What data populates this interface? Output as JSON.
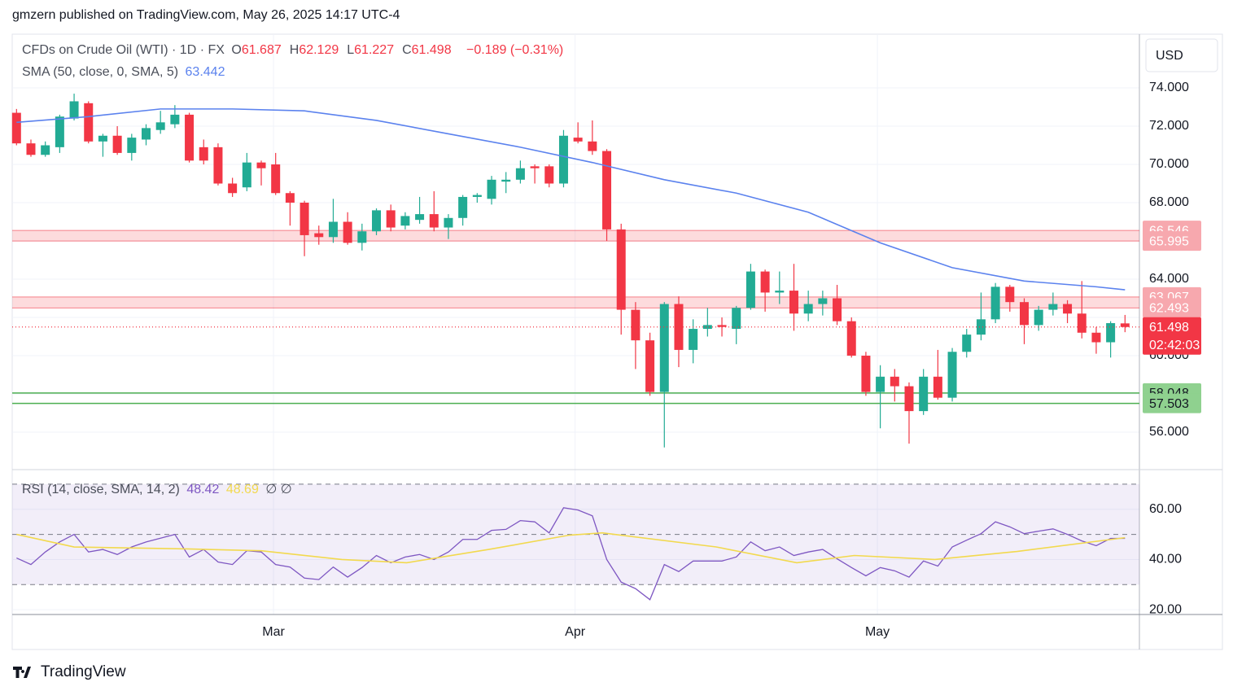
{
  "header": "gmzern published on TradingView.com, May 26, 2025 14:17 UTC-4",
  "footer": "TradingView",
  "chart_data": {
    "type": "candlestick",
    "title": "CFDs on Crude Oil (WTI) · 1D · FX",
    "ohlc_labels": [
      "O",
      "H",
      "L",
      "C"
    ],
    "change": "−0.189 (−0.31%)",
    "currency": "USD",
    "countdown": "02:42:03",
    "up_color": "#22ab94",
    "down_color": "#f23645",
    "grid": true,
    "xlim": [
      -0.3,
      78
    ],
    "xticks": [
      {
        "value": 17.85,
        "label": "Mar"
      },
      {
        "value": 38.8,
        "label": "Apr"
      },
      {
        "value": 59.8,
        "label": "May"
      }
    ],
    "ylim": [
      54.04,
      76.81
    ],
    "yticks": [
      {
        "value": 56,
        "label": "56.000"
      },
      {
        "value": 58,
        "label": "58.000"
      },
      {
        "value": 60,
        "label": "60.000"
      },
      {
        "value": 62,
        "label": "62.000"
      },
      {
        "value": 64,
        "label": "64.000"
      },
      {
        "value": 66,
        "label": "66.000"
      },
      {
        "value": 68,
        "label": "68.000"
      },
      {
        "value": 70,
        "label": "70.000"
      },
      {
        "value": 72,
        "label": "72.000"
      },
      {
        "value": 74,
        "label": "74.000"
      }
    ],
    "open": [
      72.7,
      71.1,
      70.5,
      70.9,
      72.4,
      73.2,
      71.2,
      71.5,
      70.6,
      71.3,
      71.8,
      72.1,
      72.6,
      70.9,
      70.9,
      69.0,
      68.8,
      70.1,
      70.0,
      68.5,
      68.0,
      66.4,
      66.2,
      67.0,
      65.9,
      66.5,
      67.6,
      66.8,
      67.1,
      67.4,
      66.7,
      67.2,
      68.3,
      68.2,
      69.1,
      69.2,
      69.9,
      69.9,
      69.0,
      71.4,
      71.2,
      70.7,
      66.6,
      62.4,
      60.8,
      58.1,
      62.7,
      60.3,
      61.4,
      61.6,
      61.4,
      62.5,
      64.4,
      63.3,
      63.4,
      62.2,
      62.7,
      63.0,
      61.8,
      60.0,
      58.1,
      58.9,
      58.4,
      57.1,
      58.9,
      57.8,
      60.2,
      61.1,
      61.9,
      63.6,
      62.8,
      61.6,
      62.4,
      62.7,
      62.2,
      61.2,
      60.7,
      61.687
    ],
    "high": [
      72.9,
      71.3,
      71.2,
      72.6,
      73.7,
      73.3,
      71.6,
      72.0,
      71.6,
      72.1,
      72.8,
      73.1,
      72.7,
      71.3,
      71.1,
      69.3,
      70.6,
      70.2,
      70.6,
      68.6,
      68.1,
      66.8,
      68.2,
      67.5,
      66.9,
      67.7,
      67.9,
      67.5,
      68.3,
      68.6,
      67.4,
      68.4,
      68.5,
      69.4,
      69.6,
      70.2,
      70.0,
      70.0,
      71.8,
      72.2,
      72.3,
      70.8,
      66.9,
      62.8,
      61.2,
      62.8,
      63.1,
      61.9,
      62.5,
      62.0,
      62.6,
      64.8,
      64.5,
      64.4,
      64.8,
      63.4,
      63.4,
      63.7,
      62.0,
      60.2,
      59.5,
      59.3,
      58.6,
      59.3,
      60.3,
      60.4,
      61.4,
      63.3,
      63.8,
      63.7,
      63.0,
      62.6,
      63.3,
      62.9,
      63.9,
      61.5,
      61.8,
      62.129
    ],
    "low": [
      71.0,
      70.4,
      70.4,
      70.6,
      72.3,
      71.1,
      70.4,
      70.5,
      70.2,
      71.0,
      71.6,
      71.9,
      70.1,
      70.0,
      68.9,
      68.3,
      68.6,
      68.9,
      68.4,
      66.8,
      65.2,
      65.8,
      65.9,
      65.8,
      65.5,
      66.3,
      66.5,
      66.6,
      66.9,
      66.5,
      66.1,
      66.8,
      68.0,
      67.9,
      68.5,
      69.0,
      69.0,
      68.8,
      68.8,
      71.1,
      70.5,
      66.0,
      61.1,
      59.3,
      57.9,
      55.2,
      59.4,
      59.6,
      61.0,
      61.0,
      60.6,
      62.4,
      62.3,
      62.7,
      61.3,
      61.8,
      62.1,
      61.6,
      59.9,
      57.9,
      56.2,
      57.6,
      55.4,
      56.9,
      57.7,
      57.6,
      59.9,
      60.8,
      61.7,
      62.3,
      60.6,
      61.3,
      62.1,
      61.7,
      60.9,
      60.1,
      59.9,
      61.227
    ],
    "close": [
      71.1,
      70.5,
      71.0,
      72.5,
      73.3,
      71.2,
      71.5,
      70.6,
      71.4,
      71.9,
      72.2,
      72.6,
      70.2,
      70.2,
      69.0,
      68.5,
      70.1,
      69.8,
      68.5,
      68.0,
      66.3,
      66.2,
      67.0,
      65.9,
      66.5,
      67.6,
      66.7,
      67.3,
      67.4,
      66.7,
      67.2,
      68.3,
      68.4,
      69.2,
      69.2,
      69.8,
      69.8,
      69.0,
      71.5,
      71.2,
      70.7,
      66.6,
      62.4,
      60.8,
      58.1,
      62.7,
      60.3,
      61.4,
      61.6,
      61.5,
      62.5,
      64.4,
      63.3,
      63.4,
      62.2,
      62.7,
      63.0,
      61.8,
      60.0,
      58.1,
      58.9,
      58.4,
      57.1,
      58.9,
      57.8,
      60.2,
      61.1,
      61.9,
      63.6,
      62.8,
      61.6,
      62.4,
      62.7,
      62.2,
      61.2,
      60.7,
      61.7,
      61.498
    ],
    "sma": {
      "label": "SMA (50, close, 0, SMA, 5)",
      "color": "#5b82ee",
      "x": [
        0,
        5,
        10,
        15,
        20,
        25,
        30,
        35,
        40,
        45,
        50,
        55,
        60,
        65,
        70,
        75,
        77
      ],
      "values": [
        72.2,
        72.5,
        72.9,
        72.9,
        72.8,
        72.3,
        71.6,
        70.9,
        70.1,
        69.2,
        68.5,
        67.5,
        65.9,
        64.6,
        63.9,
        63.6,
        63.442
      ]
    },
    "zones": [
      {
        "low": 65.995,
        "high": 66.546,
        "color": "#f23645"
      },
      {
        "low": 62.493,
        "high": 63.067,
        "color": "#f23645"
      }
    ],
    "levels": [
      {
        "value": 58.048,
        "color": "#4caf50"
      },
      {
        "value": 57.503,
        "color": "#4caf50"
      }
    ],
    "rsi": {
      "label": "RSI (14, close, SMA, 14, 2)",
      "color": "#7e57c2",
      "extra": "∅ ∅",
      "ylim": [
        18.1,
        75.8
      ],
      "yticks": [
        {
          "value": 20,
          "label": "20.00"
        },
        {
          "value": 40,
          "label": "40.00"
        },
        {
          "value": 60,
          "label": "60.00"
        }
      ],
      "bands": [
        70,
        50,
        30
      ],
      "values": [
        40.6,
        38,
        43,
        47,
        50,
        43,
        44,
        42,
        45,
        47,
        48.5,
        50,
        41,
        44,
        39,
        38,
        43.5,
        43,
        38,
        37,
        32.6,
        32,
        37,
        33,
        36.8,
        41.6,
        38.7,
        41,
        42,
        40,
        43,
        48,
        48,
        51.6,
        52,
        55.5,
        55,
        50.6,
        60.6,
        59.7,
        57.4,
        40,
        31,
        28.4,
        24,
        38,
        35.2,
        39.4,
        39.4,
        39.4,
        41,
        47,
        43.5,
        45,
        41.6,
        43,
        44,
        40.3,
        36.8,
        33.5,
        36.8,
        35.5,
        33,
        39.4,
        37.4,
        45,
        47.7,
        50.3,
        55,
        53,
        50.3,
        51.3,
        52.2,
        50,
        47.4,
        45.5,
        48.4,
        48.42
      ]
    },
    "rsi_ma": {
      "color": "#f2d94e",
      "x": [
        0,
        4,
        11.9,
        17,
        22.6,
        27.1,
        32.8,
        38.4,
        40.7,
        48.6,
        54.2,
        58.2,
        63.8,
        69.5,
        77
      ],
      "values": [
        50,
        45,
        44.2,
        43.5,
        40,
        38.7,
        44,
        49.7,
        50.6,
        45,
        38.7,
        41.6,
        40,
        43.2,
        48.69
      ]
    }
  }
}
